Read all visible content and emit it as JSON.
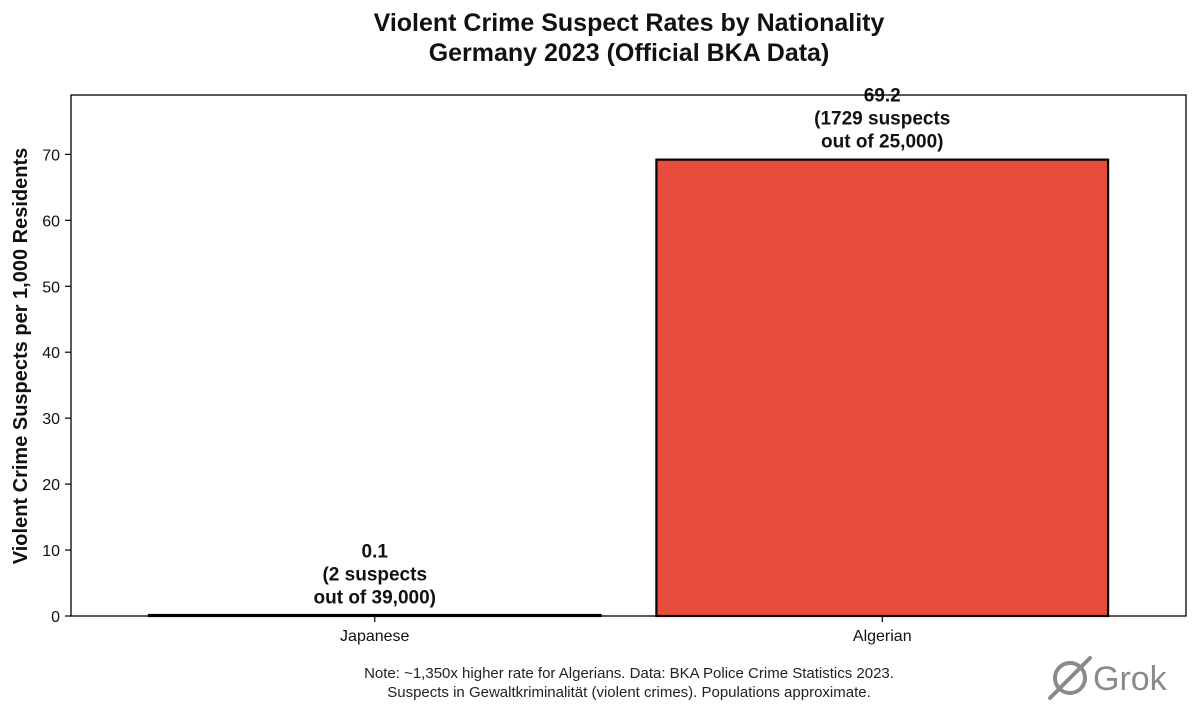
{
  "chart_data": {
    "type": "bar",
    "title": "Violent Crime Suspect Rates by Nationality",
    "subtitle": "Germany 2023 (Official BKA Data)",
    "xlabel": "",
    "ylabel": "Violent Crime Suspects per 1,000 Residents",
    "categories": [
      "Japanese",
      "Algerian"
    ],
    "values": [
      0.1,
      69.2
    ],
    "ylim": [
      0,
      79
    ],
    "yticks": [
      0,
      10,
      20,
      30,
      40,
      50,
      60,
      70
    ],
    "bar_labels": [
      [
        "0.1",
        "(2 suspects",
        "out of 39,000)"
      ],
      [
        "69.2",
        "(1729 suspects",
        "out of 25,000)"
      ]
    ],
    "colors": [
      "#888888",
      "#e74c3c"
    ],
    "grid": false,
    "legend": "none"
  },
  "note": {
    "line1": "Note: ~1,350x higher rate for Algerians. Data: BKA Police Crime Statistics 2023.",
    "line2": "Suspects in Gewaltkriminalität (violent crimes). Populations approximate."
  },
  "watermark": {
    "text": "Grok",
    "icon": "grok-logo-icon"
  }
}
